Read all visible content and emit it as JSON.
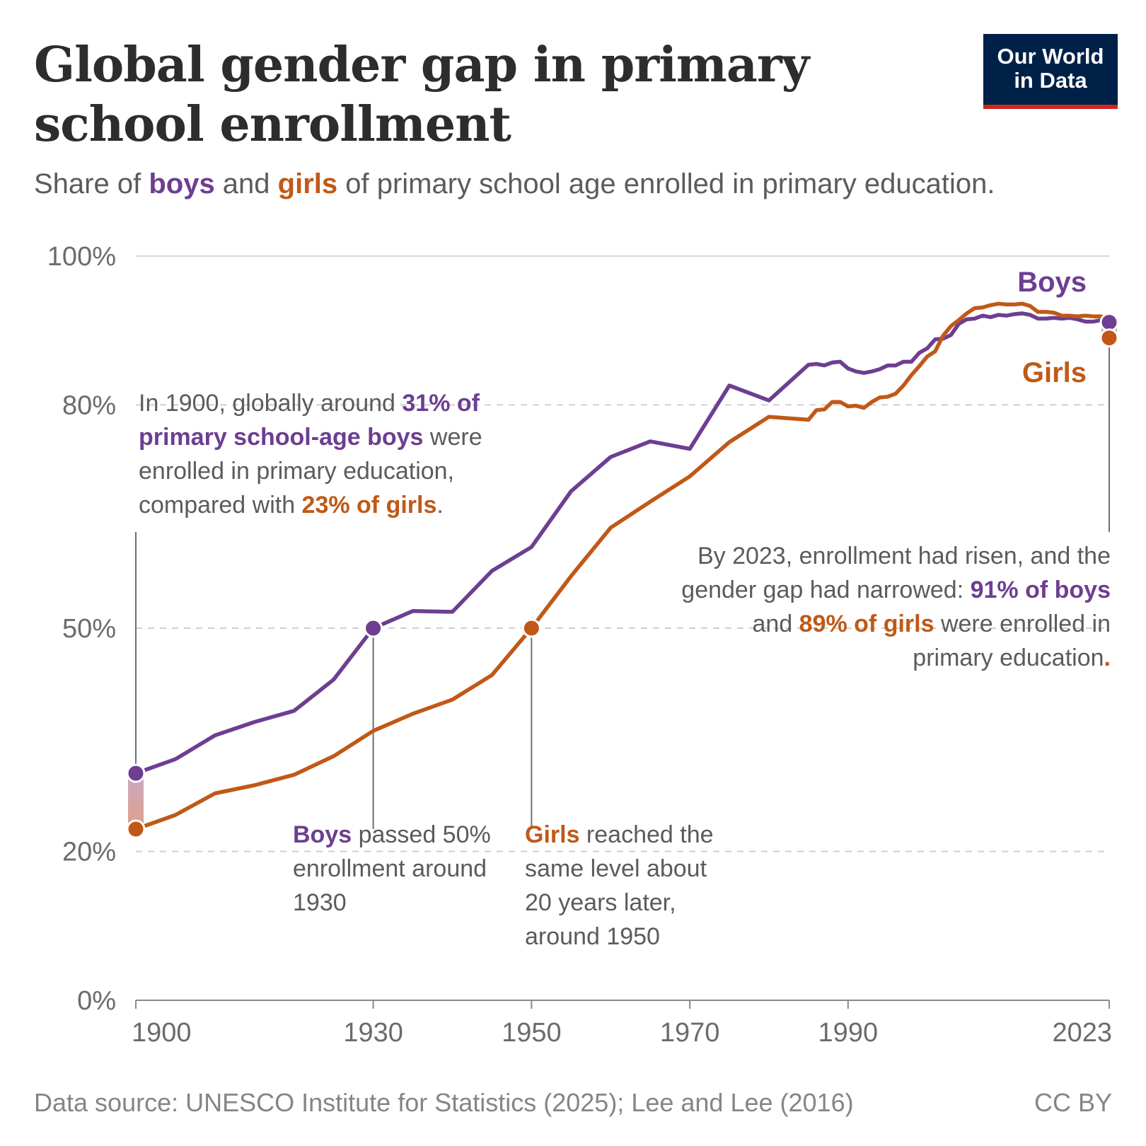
{
  "header": {
    "title": "Global gender gap in primary school enrollment",
    "subtitle_pre": "Share of ",
    "subtitle_boys": "boys",
    "subtitle_and": " and ",
    "subtitle_girls": "girls",
    "subtitle_post": " of primary school age enrolled in primary education."
  },
  "logo": {
    "line1": "Our World",
    "line2": "in Data"
  },
  "colors": {
    "boys": "#6d3e91",
    "girls": "#c05917",
    "grid": "#cfcfcf",
    "axis": "#8a8a8a",
    "text": "#5b5b5b"
  },
  "annotations": {
    "a1900": {
      "t1": "In 1900, globally around ",
      "b1": "31% of primary school-age boys",
      "t2": " were enrolled in primary education, compared with ",
      "g1": "23% of girls",
      "t3": "."
    },
    "a1930": {
      "b1": "Boys",
      "t1": " passed 50% enrollment around 1930"
    },
    "a1950": {
      "g1": "Girls",
      "t1": " reached the same level about 20 years later, around 1950"
    },
    "a2023": {
      "t1": "By 2023, enrollment had risen, and the gender gap had narrowed: ",
      "b1": "91% of boys",
      "t2": " and ",
      "g1": "89% of girls",
      "t3": " were enrolled in primary education",
      "g2": "."
    }
  },
  "footer": {
    "source": "Data source: UNESCO Institute for Statistics (2025); Lee and Lee (2016)",
    "license": "CC BY"
  },
  "chart_data": {
    "type": "line",
    "xlim": [
      1900,
      2023
    ],
    "ylim": [
      0,
      100
    ],
    "y_ticks": [
      0,
      20,
      50,
      80,
      100
    ],
    "y_tick_labels": [
      "0%",
      "20%",
      "50%",
      "80%",
      "100%"
    ],
    "x_ticks": [
      1900,
      1930,
      1950,
      1970,
      1990,
      2023
    ],
    "x_tick_labels": [
      "1900",
      "1930",
      "1950",
      "1970",
      "1990",
      "2023"
    ],
    "grid": "horizontal",
    "series": [
      {
        "name": "Boys",
        "x": [
          1900,
          1905,
          1910,
          1915,
          1920,
          1925,
          1930,
          1935,
          1940,
          1945,
          1950,
          1955,
          1960,
          1965,
          1970,
          1975,
          1980,
          1985,
          1986,
          1987,
          1988,
          1989,
          1990,
          1991,
          1992,
          1993,
          1994,
          1995,
          1996,
          1997,
          1998,
          1999,
          2000,
          2001,
          2002,
          2003,
          2004,
          2005,
          2006,
          2007,
          2008,
          2009,
          2010,
          2011,
          2012,
          2013,
          2014,
          2015,
          2016,
          2017,
          2018,
          2019,
          2020,
          2021,
          2022,
          2023
        ],
        "values": [
          30.5,
          32.4,
          35.6,
          37.4,
          38.9,
          43.1,
          50.0,
          52.3,
          52.2,
          57.7,
          60.9,
          68.4,
          73.0,
          75.1,
          74.1,
          82.6,
          80.6,
          85.4,
          85.5,
          85.3,
          85.7,
          85.8,
          84.9,
          84.5,
          84.3,
          84.5,
          84.8,
          85.3,
          85.3,
          85.8,
          85.8,
          87.0,
          87.6,
          88.8,
          88.9,
          89.4,
          90.9,
          91.5,
          91.6,
          92.0,
          91.8,
          92.1,
          92.0,
          92.2,
          92.3,
          92.1,
          91.6,
          91.6,
          91.7,
          91.6,
          91.7,
          91.5,
          91.2,
          91.2,
          91.4,
          91.1
        ]
      },
      {
        "name": "Girls",
        "x": [
          1900,
          1905,
          1910,
          1915,
          1920,
          1925,
          1930,
          1935,
          1940,
          1945,
          1950,
          1955,
          1960,
          1965,
          1970,
          1975,
          1980,
          1985,
          1986,
          1987,
          1988,
          1989,
          1990,
          1991,
          1992,
          1993,
          1994,
          1995,
          1996,
          1997,
          1998,
          1999,
          2000,
          2001,
          2002,
          2003,
          2004,
          2005,
          2006,
          2007,
          2008,
          2009,
          2010,
          2011,
          2012,
          2013,
          2014,
          2015,
          2016,
          2017,
          2018,
          2019,
          2020,
          2021,
          2022,
          2023
        ],
        "values": [
          23.0,
          24.9,
          27.8,
          28.9,
          30.3,
          32.8,
          36.2,
          38.5,
          40.4,
          43.7,
          50.0,
          57.0,
          63.5,
          67.0,
          70.4,
          75.0,
          78.4,
          78.0,
          79.3,
          79.4,
          80.4,
          80.4,
          79.8,
          79.9,
          79.6,
          80.4,
          81.0,
          81.1,
          81.5,
          82.6,
          84.0,
          85.2,
          86.5,
          87.2,
          89.3,
          90.6,
          91.4,
          92.3,
          93.0,
          93.1,
          93.4,
          93.6,
          93.5,
          93.5,
          93.6,
          93.3,
          92.5,
          92.5,
          92.4,
          92.0,
          92.0,
          91.9,
          92.0,
          91.9,
          91.9,
          89.0
        ]
      }
    ],
    "series_labels": [
      "Boys",
      "Girls"
    ],
    "highlighted_points": [
      {
        "series": "Boys",
        "x": 1900,
        "y": 30.5
      },
      {
        "series": "Girls",
        "x": 1900,
        "y": 23.0
      },
      {
        "series": "Boys",
        "x": 1930,
        "y": 50.0
      },
      {
        "series": "Girls",
        "x": 1950,
        "y": 50.0
      },
      {
        "series": "Boys",
        "x": 2023,
        "y": 91.1
      },
      {
        "series": "Girls",
        "x": 2023,
        "y": 89.0
      }
    ]
  }
}
